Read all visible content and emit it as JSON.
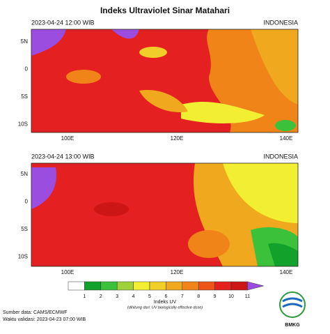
{
  "header": {
    "title": "Indeks Ultraviolet Sinar Matahari"
  },
  "panels": [
    {
      "time": "2023-04-24  12:00 WIB",
      "region": "INDONESIA"
    },
    {
      "time": "2023-04-24  13:00 WIB",
      "region": "INDONESIA"
    }
  ],
  "lat_labels": [
    "5N",
    "0",
    "5S",
    "10S"
  ],
  "lon_labels": [
    "100E",
    "120E",
    "140E"
  ],
  "colorbar": {
    "ticks": [
      1,
      2,
      3,
      4,
      5,
      6,
      7,
      8,
      9,
      10,
      11
    ],
    "colors": [
      "#ffffff",
      "#12a12a",
      "#3cc23a",
      "#9ed23a",
      "#f2ee32",
      "#f0cf2a",
      "#f0a81e",
      "#f08418",
      "#ec5418",
      "#e42020",
      "#cc1616",
      "#9b4de0"
    ],
    "title": "Indeks UV",
    "subtitle": "(dihitung dari: UV biologically effective dose)"
  },
  "footer": {
    "source": "Sumber data: CAMS/ECMWF",
    "valid": "Waktu validasi: 2023-04-23 07:00 WIB",
    "logo": "BMKG"
  }
}
